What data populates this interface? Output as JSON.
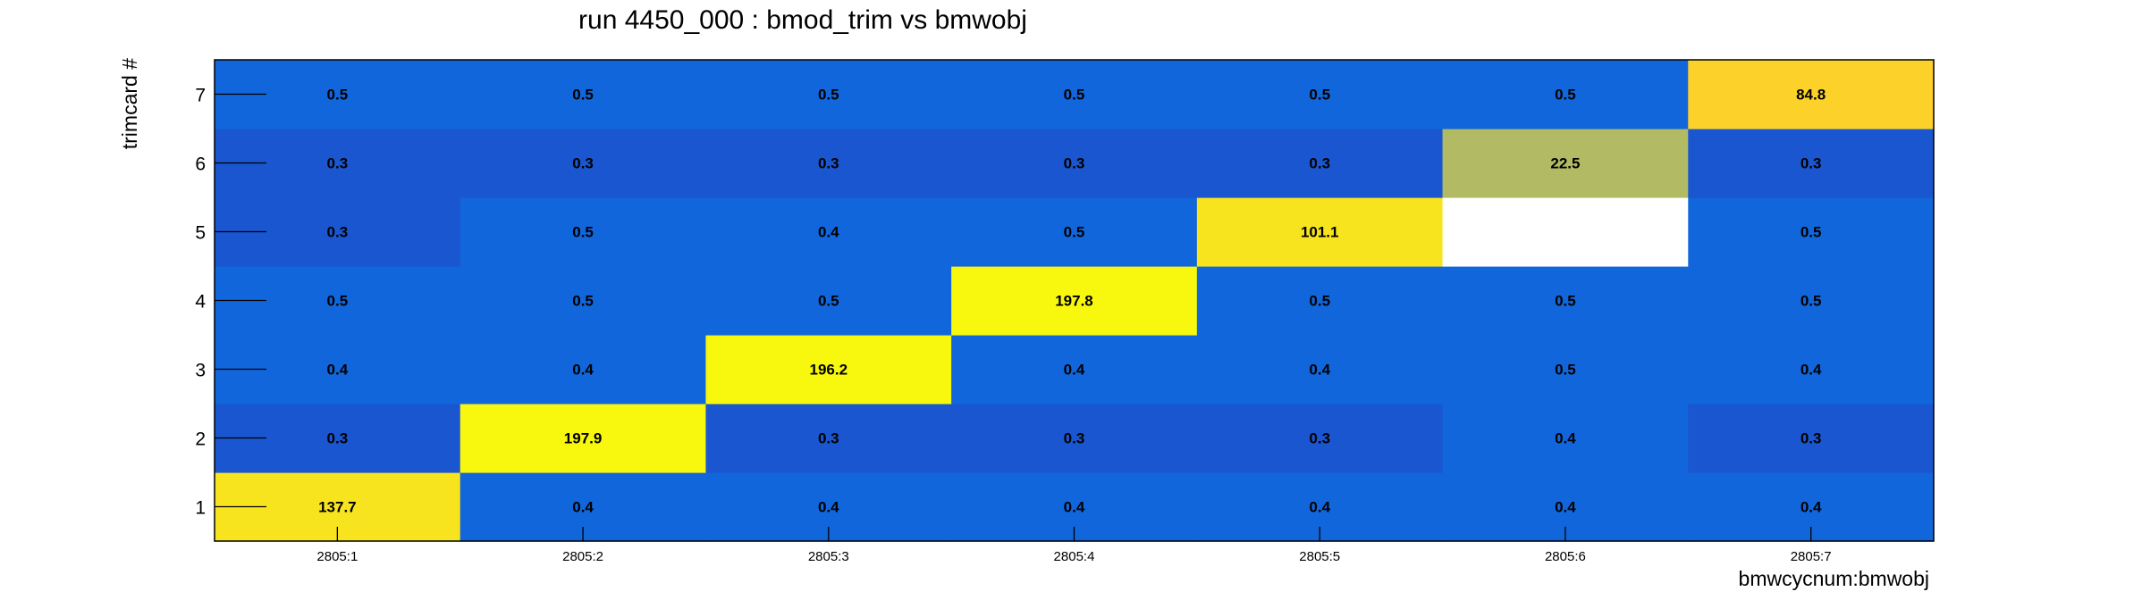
{
  "chart_data": {
    "type": "heatmap",
    "title": "run 4450_000 : bmod_trim vs bmwobj",
    "xlabel": "bmwcycnum:bmwobj",
    "ylabel": "trimcard #",
    "x_categories": [
      "2805:1",
      "2805:2",
      "2805:3",
      "2805:4",
      "2805:5",
      "2805:6",
      "2805:7"
    ],
    "y_categories": [
      "1",
      "2",
      "3",
      "4",
      "5",
      "6",
      "7"
    ],
    "grid": false,
    "values": [
      [
        137.7,
        0.4,
        0.4,
        0.4,
        0.4,
        0.4,
        0.4
      ],
      [
        0.3,
        197.9,
        0.3,
        0.3,
        0.3,
        0.4,
        0.3
      ],
      [
        0.4,
        0.4,
        196.2,
        0.4,
        0.4,
        0.5,
        0.4
      ],
      [
        0.5,
        0.5,
        0.5,
        197.8,
        0.5,
        0.5,
        0.5
      ],
      [
        0.3,
        0.5,
        0.4,
        0.5,
        101.1,
        null,
        0.5
      ],
      [
        0.3,
        0.3,
        0.3,
        0.3,
        0.3,
        22.5,
        0.3
      ],
      [
        0.5,
        0.5,
        0.5,
        0.5,
        0.5,
        0.5,
        84.8
      ]
    ],
    "labels": [
      [
        "137.7",
        "0.4",
        "0.4",
        "0.4",
        "0.4",
        "0.4",
        "0.4"
      ],
      [
        "0.3",
        "197.9",
        "0.3",
        "0.3",
        "0.3",
        "0.4",
        "0.3"
      ],
      [
        "0.4",
        "0.4",
        "196.2",
        "0.4",
        "0.4",
        "0.5",
        "0.4"
      ],
      [
        "0.5",
        "0.5",
        "0.5",
        "197.8",
        "0.5",
        "0.5",
        "0.5"
      ],
      [
        "0.3",
        "0.5",
        "0.4",
        "0.5",
        "101.1",
        "",
        "0.5"
      ],
      [
        "0.3",
        "0.3",
        "0.3",
        "0.3",
        "0.3",
        "22.5",
        "0.3"
      ],
      [
        "0.5",
        "0.5",
        "0.5",
        "0.5",
        "0.5",
        "0.5",
        "84.8"
      ]
    ],
    "colors": {
      "low": "#1a56cf",
      "mid": "#1266db",
      "olive": "#b2bb64",
      "yellow_orange": "#fcd22a",
      "yellow_gold": "#f7e41e",
      "yellow_bright": "#f8f80e",
      "empty": "#ffffff"
    }
  }
}
